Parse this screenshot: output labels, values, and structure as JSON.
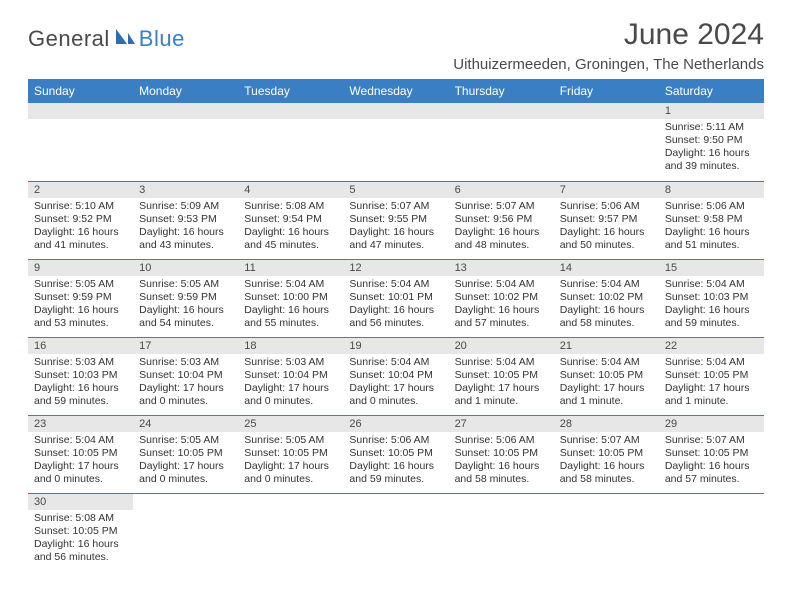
{
  "colors": {
    "header_bg": "#3a7fc4",
    "header_text": "#ffffff",
    "daynum_bg": "#e7e7e7",
    "row_border": "#3a7fc4",
    "body_text": "#333333",
    "title_text": "#4a4a4a",
    "logo_gray": "#4a4a4a",
    "logo_blue": "#3a7fc4",
    "page_bg": "#ffffff"
  },
  "typography": {
    "title_fontsize": 30,
    "location_fontsize": 15,
    "dayheader_fontsize": 12,
    "daynum_fontsize": 11,
    "body_fontsize": 10.5
  },
  "logo": {
    "part1": "General",
    "part2": "Blue"
  },
  "title": "June 2024",
  "location": "Uithuizermeeden, Groningen, The Netherlands",
  "day_headers": [
    "Sunday",
    "Monday",
    "Tuesday",
    "Wednesday",
    "Thursday",
    "Friday",
    "Saturday"
  ],
  "weeks": [
    [
      null,
      null,
      null,
      null,
      null,
      null,
      {
        "n": "1",
        "sunrise": "Sunrise: 5:11 AM",
        "sunset": "Sunset: 9:50 PM",
        "daylight": "Daylight: 16 hours and 39 minutes."
      }
    ],
    [
      {
        "n": "2",
        "sunrise": "Sunrise: 5:10 AM",
        "sunset": "Sunset: 9:52 PM",
        "daylight": "Daylight: 16 hours and 41 minutes."
      },
      {
        "n": "3",
        "sunrise": "Sunrise: 5:09 AM",
        "sunset": "Sunset: 9:53 PM",
        "daylight": "Daylight: 16 hours and 43 minutes."
      },
      {
        "n": "4",
        "sunrise": "Sunrise: 5:08 AM",
        "sunset": "Sunset: 9:54 PM",
        "daylight": "Daylight: 16 hours and 45 minutes."
      },
      {
        "n": "5",
        "sunrise": "Sunrise: 5:07 AM",
        "sunset": "Sunset: 9:55 PM",
        "daylight": "Daylight: 16 hours and 47 minutes."
      },
      {
        "n": "6",
        "sunrise": "Sunrise: 5:07 AM",
        "sunset": "Sunset: 9:56 PM",
        "daylight": "Daylight: 16 hours and 48 minutes."
      },
      {
        "n": "7",
        "sunrise": "Sunrise: 5:06 AM",
        "sunset": "Sunset: 9:57 PM",
        "daylight": "Daylight: 16 hours and 50 minutes."
      },
      {
        "n": "8",
        "sunrise": "Sunrise: 5:06 AM",
        "sunset": "Sunset: 9:58 PM",
        "daylight": "Daylight: 16 hours and 51 minutes."
      }
    ],
    [
      {
        "n": "9",
        "sunrise": "Sunrise: 5:05 AM",
        "sunset": "Sunset: 9:59 PM",
        "daylight": "Daylight: 16 hours and 53 minutes."
      },
      {
        "n": "10",
        "sunrise": "Sunrise: 5:05 AM",
        "sunset": "Sunset: 9:59 PM",
        "daylight": "Daylight: 16 hours and 54 minutes."
      },
      {
        "n": "11",
        "sunrise": "Sunrise: 5:04 AM",
        "sunset": "Sunset: 10:00 PM",
        "daylight": "Daylight: 16 hours and 55 minutes."
      },
      {
        "n": "12",
        "sunrise": "Sunrise: 5:04 AM",
        "sunset": "Sunset: 10:01 PM",
        "daylight": "Daylight: 16 hours and 56 minutes."
      },
      {
        "n": "13",
        "sunrise": "Sunrise: 5:04 AM",
        "sunset": "Sunset: 10:02 PM",
        "daylight": "Daylight: 16 hours and 57 minutes."
      },
      {
        "n": "14",
        "sunrise": "Sunrise: 5:04 AM",
        "sunset": "Sunset: 10:02 PM",
        "daylight": "Daylight: 16 hours and 58 minutes."
      },
      {
        "n": "15",
        "sunrise": "Sunrise: 5:04 AM",
        "sunset": "Sunset: 10:03 PM",
        "daylight": "Daylight: 16 hours and 59 minutes."
      }
    ],
    [
      {
        "n": "16",
        "sunrise": "Sunrise: 5:03 AM",
        "sunset": "Sunset: 10:03 PM",
        "daylight": "Daylight: 16 hours and 59 minutes."
      },
      {
        "n": "17",
        "sunrise": "Sunrise: 5:03 AM",
        "sunset": "Sunset: 10:04 PM",
        "daylight": "Daylight: 17 hours and 0 minutes."
      },
      {
        "n": "18",
        "sunrise": "Sunrise: 5:03 AM",
        "sunset": "Sunset: 10:04 PM",
        "daylight": "Daylight: 17 hours and 0 minutes."
      },
      {
        "n": "19",
        "sunrise": "Sunrise: 5:04 AM",
        "sunset": "Sunset: 10:04 PM",
        "daylight": "Daylight: 17 hours and 0 minutes."
      },
      {
        "n": "20",
        "sunrise": "Sunrise: 5:04 AM",
        "sunset": "Sunset: 10:05 PM",
        "daylight": "Daylight: 17 hours and 1 minute."
      },
      {
        "n": "21",
        "sunrise": "Sunrise: 5:04 AM",
        "sunset": "Sunset: 10:05 PM",
        "daylight": "Daylight: 17 hours and 1 minute."
      },
      {
        "n": "22",
        "sunrise": "Sunrise: 5:04 AM",
        "sunset": "Sunset: 10:05 PM",
        "daylight": "Daylight: 17 hours and 1 minute."
      }
    ],
    [
      {
        "n": "23",
        "sunrise": "Sunrise: 5:04 AM",
        "sunset": "Sunset: 10:05 PM",
        "daylight": "Daylight: 17 hours and 0 minutes."
      },
      {
        "n": "24",
        "sunrise": "Sunrise: 5:05 AM",
        "sunset": "Sunset: 10:05 PM",
        "daylight": "Daylight: 17 hours and 0 minutes."
      },
      {
        "n": "25",
        "sunrise": "Sunrise: 5:05 AM",
        "sunset": "Sunset: 10:05 PM",
        "daylight": "Daylight: 17 hours and 0 minutes."
      },
      {
        "n": "26",
        "sunrise": "Sunrise: 5:06 AM",
        "sunset": "Sunset: 10:05 PM",
        "daylight": "Daylight: 16 hours and 59 minutes."
      },
      {
        "n": "27",
        "sunrise": "Sunrise: 5:06 AM",
        "sunset": "Sunset: 10:05 PM",
        "daylight": "Daylight: 16 hours and 58 minutes."
      },
      {
        "n": "28",
        "sunrise": "Sunrise: 5:07 AM",
        "sunset": "Sunset: 10:05 PM",
        "daylight": "Daylight: 16 hours and 58 minutes."
      },
      {
        "n": "29",
        "sunrise": "Sunrise: 5:07 AM",
        "sunset": "Sunset: 10:05 PM",
        "daylight": "Daylight: 16 hours and 57 minutes."
      }
    ],
    [
      {
        "n": "30",
        "sunrise": "Sunrise: 5:08 AM",
        "sunset": "Sunset: 10:05 PM",
        "daylight": "Daylight: 16 hours and 56 minutes."
      },
      null,
      null,
      null,
      null,
      null,
      null
    ]
  ]
}
